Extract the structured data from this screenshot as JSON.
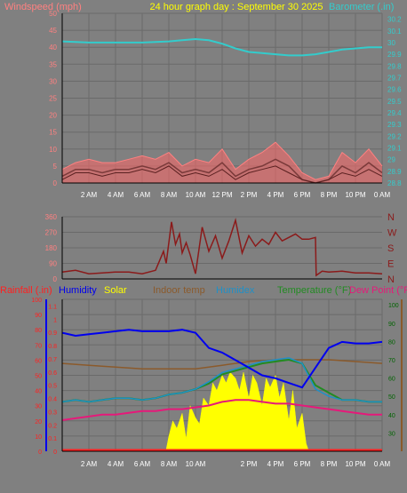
{
  "title": "24 hour graph day : September 30 2025",
  "colors": {
    "background": "#808080",
    "wind": "#ff8080",
    "gust": "#ff6666",
    "wind_avg": "#7a3a3a",
    "barometer": "#33cccc",
    "direction": "#8b1a1a",
    "rain": "#ff2020",
    "humidity": "#0000ee",
    "solar": "#ffff00",
    "indoor": "#8b5a2b",
    "humidex": "#1e90c8",
    "temperature": "#228b22",
    "dewpoint": "#e6197a",
    "title": "#ffff00",
    "grid": "#6a6a6a",
    "rain_axis": "#ff2020",
    "right_axis": "#006400"
  },
  "chart_data": [
    {
      "type": "line",
      "name": "wind-barometer",
      "x_ticks": [
        "2 AM",
        "4 AM",
        "6 AM",
        "8 AM",
        "10 AM",
        "12 PM",
        "2 PM",
        "4 PM",
        "6 PM",
        "8 PM",
        "10 PM",
        "0 AM"
      ],
      "left_axis_label": "Windspeed (mph)",
      "right_axis_label": "Barometer (.in)",
      "left_ticks": [
        "0",
        "5",
        "10",
        "15",
        "20",
        "25",
        "30",
        "35",
        "40",
        "45",
        "50"
      ],
      "right_ticks": [
        "28.8",
        "28.9",
        "29",
        "29.1",
        "29.2",
        "29.3",
        "29.4",
        "29.5",
        "29.6",
        "29.7",
        "29.8",
        "29.9",
        "30",
        "30.1",
        "30.2"
      ],
      "ylim_left": [
        0,
        50
      ],
      "ylim_right": [
        28.8,
        30.25
      ],
      "x_range_hours": [
        0,
        24
      ],
      "series": [
        {
          "key": "barometer",
          "axis": "right",
          "x": [
            0,
            2,
            4,
            6,
            8,
            9,
            10,
            11,
            12,
            13,
            14,
            15,
            16,
            17,
            18,
            19,
            20,
            21,
            22,
            23,
            24
          ],
          "values": [
            30.01,
            30.0,
            30.0,
            30.0,
            30.01,
            30.02,
            30.03,
            30.02,
            29.99,
            29.95,
            29.92,
            29.91,
            29.9,
            29.89,
            29.89,
            29.9,
            29.92,
            29.94,
            29.95,
            29.96,
            29.96
          ]
        },
        {
          "key": "wind_gust",
          "axis": "left",
          "x": [
            0,
            1,
            2,
            3,
            4,
            5,
            6,
            7,
            8,
            9,
            10,
            11,
            12,
            13,
            14,
            15,
            16,
            17,
            18,
            19,
            20,
            21,
            22,
            23,
            24
          ],
          "values": [
            4,
            6,
            7,
            6,
            6,
            7,
            8,
            7,
            9,
            5,
            7,
            6,
            10,
            4,
            7,
            9,
            12,
            8,
            3,
            1,
            2,
            9,
            6,
            10,
            5
          ]
        },
        {
          "key": "wind_speed",
          "axis": "left",
          "x": [
            0,
            1,
            2,
            3,
            4,
            5,
            6,
            7,
            8,
            9,
            10,
            11,
            12,
            13,
            14,
            15,
            16,
            17,
            18,
            19,
            20,
            21,
            22,
            23,
            24
          ],
          "values": [
            2,
            4,
            4,
            3,
            4,
            4,
            5,
            4,
            6,
            3,
            4,
            3,
            6,
            2,
            4,
            5,
            7,
            5,
            1,
            0,
            1,
            5,
            3,
            6,
            3
          ]
        },
        {
          "key": "wind_avg",
          "axis": "left",
          "x": [
            0,
            1,
            2,
            3,
            4,
            5,
            6,
            7,
            8,
            9,
            10,
            11,
            12,
            13,
            14,
            15,
            16,
            17,
            18,
            19,
            20,
            21,
            22,
            23,
            24
          ],
          "values": [
            1,
            3,
            3,
            2,
            3,
            3,
            4,
            3,
            5,
            2,
            3,
            2,
            4,
            1,
            3,
            4,
            5,
            3,
            1,
            0,
            1,
            3,
            2,
            4,
            2
          ]
        }
      ]
    },
    {
      "type": "line",
      "name": "wind-direction",
      "y_ticks": [
        "0",
        "90",
        "180",
        "270",
        "360"
      ],
      "direction_labels": [
        "N",
        "E",
        "S",
        "W",
        "N"
      ],
      "ylim": [
        0,
        360
      ],
      "series": [
        {
          "key": "direction",
          "x": [
            0,
            1,
            2,
            3,
            4,
            5,
            6,
            7,
            7.6,
            7.8,
            8.2,
            8.5,
            8.8,
            9,
            9.3,
            9.6,
            10,
            10.5,
            11,
            11.5,
            12,
            12.5,
            13,
            13.5,
            14,
            14.5,
            15,
            15.5,
            16,
            16.5,
            17,
            17.5,
            18,
            18.5,
            19,
            19.05,
            19.5,
            20,
            21,
            22,
            23,
            24
          ],
          "values": [
            40,
            50,
            30,
            35,
            40,
            40,
            30,
            50,
            160,
            90,
            330,
            200,
            260,
            150,
            210,
            140,
            30,
            300,
            160,
            250,
            120,
            220,
            340,
            150,
            250,
            190,
            230,
            200,
            270,
            220,
            240,
            260,
            230,
            230,
            240,
            20,
            45,
            40,
            45,
            35,
            35,
            30
          ]
        }
      ]
    },
    {
      "type": "line",
      "name": "weather-combined",
      "x_ticks": [
        "2 AM",
        "4 AM",
        "6 AM",
        "8 AM",
        "10 AM",
        "2 PM",
        "4 PM",
        "6 PM",
        "8 PM",
        "10 PM",
        "0 AM"
      ],
      "legend": [
        "Rainfall (.in)",
        "Humidity",
        "Solar",
        "Indoor temp",
        "Humidex",
        "Temperature (°F)",
        "Dew Point (°F)"
      ],
      "left_ticks_a": [
        "0",
        "10",
        "20",
        "30",
        "40",
        "50",
        "60",
        "70",
        "80",
        "90",
        "100"
      ],
      "left_ticks_b": [
        "0",
        "0.1",
        "0.2",
        "0.3",
        "0.4",
        "0.5",
        "0.6",
        "0.7",
        "0.8",
        "0.9",
        "1",
        "1.1"
      ],
      "right_ticks": [
        "30",
        "40",
        "50",
        "60",
        "70",
        "80",
        "90",
        "100"
      ],
      "ylim_humidity": [
        0,
        100
      ],
      "ylim_rain": [
        0,
        1.15
      ],
      "ylim_temperature": [
        20,
        103
      ],
      "series": [
        {
          "key": "humidity",
          "x": [
            0,
            1,
            2,
            3,
            4,
            5,
            6,
            7,
            8,
            9,
            10,
            11,
            12,
            13,
            14,
            15,
            16,
            17,
            18,
            19,
            20,
            21,
            22,
            23,
            24
          ],
          "values": [
            78,
            76,
            77,
            78,
            79,
            80,
            79,
            79,
            79,
            80,
            78,
            68,
            65,
            60,
            55,
            50,
            48,
            45,
            42,
            55,
            68,
            72,
            71,
            71,
            72
          ]
        },
        {
          "key": "indoor",
          "x": [
            0,
            2,
            4,
            6,
            8,
            10,
            12,
            14,
            16,
            18,
            20,
            22,
            24
          ],
          "values": [
            68,
            67,
            66,
            65,
            65,
            65,
            67,
            69,
            70,
            70,
            70,
            69,
            68
          ]
        },
        {
          "key": "temperature",
          "x": [
            0,
            1,
            2,
            3,
            4,
            5,
            6,
            7,
            8,
            9,
            10,
            11,
            12,
            13,
            14,
            15,
            16,
            17,
            18,
            19,
            20,
            21,
            22,
            23,
            24
          ],
          "values": [
            47,
            48,
            47,
            48,
            49,
            49,
            48,
            49,
            51,
            52,
            54,
            57,
            62,
            64,
            66,
            68,
            69,
            70,
            68,
            56,
            52,
            48,
            48,
            47,
            47
          ]
        },
        {
          "key": "humidex",
          "x": [
            0,
            1,
            2,
            3,
            4,
            5,
            6,
            7,
            8,
            9,
            10,
            11,
            12,
            13,
            14,
            15,
            16,
            17,
            18,
            19,
            20,
            21,
            22,
            23,
            24
          ],
          "values": [
            47,
            48,
            47,
            48,
            49,
            49,
            48,
            49,
            51,
            52,
            54,
            58,
            63,
            65,
            67,
            69,
            70,
            71,
            68,
            54,
            50,
            48,
            48,
            47,
            47
          ]
        },
        {
          "key": "dewpoint",
          "x": [
            0,
            1,
            2,
            3,
            4,
            5,
            6,
            7,
            8,
            9,
            10,
            11,
            12,
            13,
            14,
            15,
            16,
            17,
            18,
            19,
            20,
            21,
            22,
            23,
            24
          ],
          "values": [
            37,
            38,
            39,
            40,
            40,
            41,
            42,
            42,
            43,
            43,
            44,
            45,
            47,
            48,
            48,
            47,
            46,
            46,
            45,
            44,
            43,
            42,
            41,
            40,
            40
          ]
        },
        {
          "key": "solar",
          "x": [
            7.5,
            7.8,
            8,
            8.3,
            8.6,
            9,
            9.3,
            9.6,
            10,
            10.3,
            10.6,
            11,
            11.3,
            11.6,
            12,
            12.3,
            12.6,
            13,
            13.3,
            13.6,
            14,
            14.3,
            14.6,
            15,
            15.3,
            15.6,
            16,
            16.3,
            16.6,
            17,
            17.3,
            17.6,
            18,
            18.3,
            18.5
          ],
          "values": [
            0,
            1,
            10,
            20,
            15,
            25,
            8,
            30,
            22,
            18,
            35,
            30,
            45,
            40,
            50,
            45,
            52,
            48,
            40,
            52,
            35,
            50,
            45,
            30,
            48,
            42,
            50,
            35,
            45,
            20,
            40,
            15,
            25,
            5,
            0
          ]
        },
        {
          "key": "rainfall",
          "x": [
            0,
            24
          ],
          "values": [
            0,
            0
          ]
        }
      ]
    }
  ]
}
